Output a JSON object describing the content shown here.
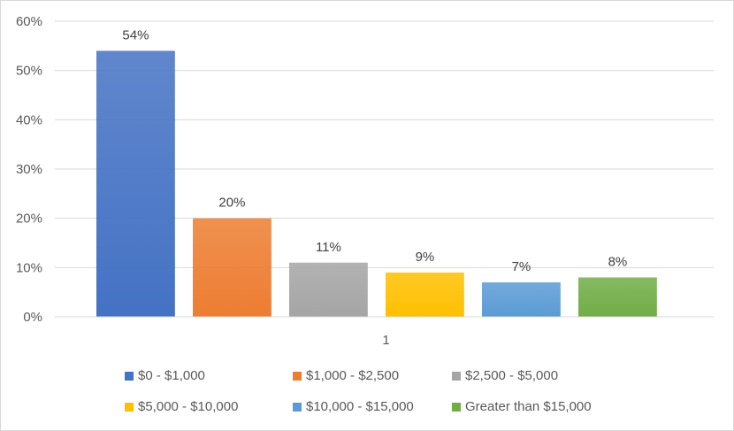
{
  "chart_data": {
    "type": "bar",
    "categories": [
      "1"
    ],
    "series": [
      {
        "name": "$0 - $1,000",
        "values": [
          54
        ],
        "label": "54%",
        "color": "#4472c4"
      },
      {
        "name": "$1,000 - $2,500",
        "values": [
          20
        ],
        "label": "20%",
        "color": "#ed7d31"
      },
      {
        "name": "$2,500 - $5,000",
        "values": [
          11
        ],
        "label": "11%",
        "color": "#a5a5a5"
      },
      {
        "name": "$5,000 - $10,000",
        "values": [
          9
        ],
        "label": "9%",
        "color": "#ffc000"
      },
      {
        "name": "$10,000 - $15,000",
        "values": [
          7
        ],
        "label": "7%",
        "color": "#5b9bd5"
      },
      {
        "name": "Greater than $15,000",
        "values": [
          8
        ],
        "label": "8%",
        "color": "#70ad47"
      }
    ],
    "ylim": [
      0,
      60
    ],
    "yticks": [
      "0%",
      "10%",
      "20%",
      "30%",
      "40%",
      "50%",
      "60%"
    ],
    "grid": true,
    "legend": "bottom"
  }
}
